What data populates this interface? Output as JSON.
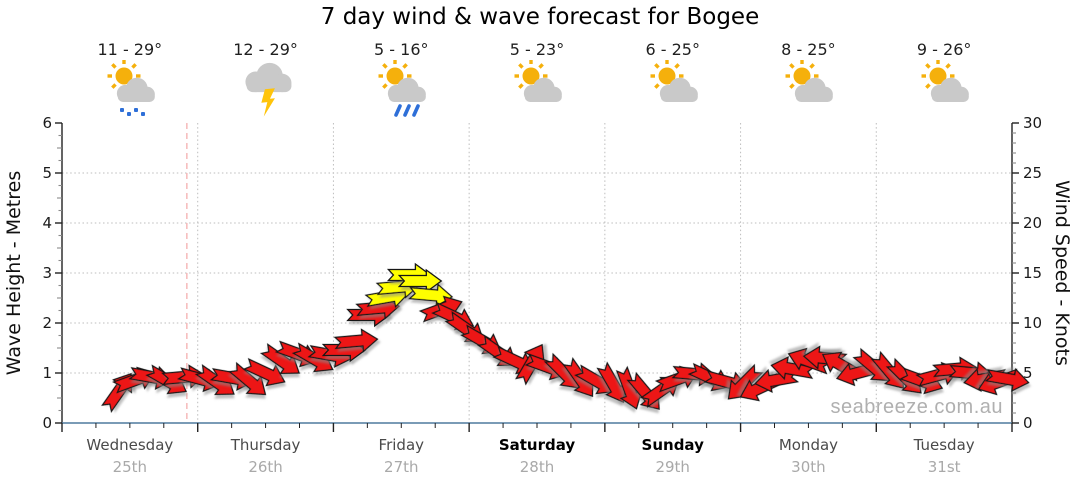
{
  "watermark": "seabreeze.com.au",
  "colors": {
    "arrow_red": "#ed1212",
    "arrow_yellow": "#ffff00",
    "arrow_outline": "#151515",
    "grid": "#bdbdbd",
    "now_line": "#f5b5b5",
    "axis": "#222222",
    "axis_bottom": "#4f7a9e",
    "minor_tick": "#8a8a8a",
    "tick_label": "#1a1a1a",
    "watermark_gray": "#b0b0b0",
    "sun": "#f5b00c",
    "cloud": "#c9c9c9",
    "bolt": "#ffc40a",
    "rain": "#2e6fd8"
  },
  "chart_data": {
    "type": "scatter",
    "style": "wind-direction-arrows",
    "title": "7 day wind & wave forecast for Bogee",
    "left_axis": {
      "label": "Wave Height - Metres",
      "min": 0,
      "max": 6,
      "ticks": [
        0,
        1,
        2,
        3,
        4,
        5,
        6
      ],
      "minor_step": 0.25,
      "gridlines": true
    },
    "right_axis": {
      "label": "Wind Speed - Knots",
      "min": 0,
      "max": 30,
      "ticks": [
        0,
        5,
        10,
        15,
        20,
        25,
        30
      ],
      "minor_step": 1
    },
    "x_axis": {
      "days": 7,
      "minor_ticks_per_day": 4,
      "day_boundary_gridlines": true
    },
    "days": [
      {
        "name": "Wednesday",
        "date": "25th",
        "temp": "11 - 29°",
        "icon": "partly-cloudy-drizzle",
        "weekend": false
      },
      {
        "name": "Thursday",
        "date": "26th",
        "temp": "12 - 29°",
        "icon": "thunderstorm",
        "weekend": false
      },
      {
        "name": "Friday",
        "date": "27th",
        "temp": "5 - 16°",
        "icon": "rain-showers",
        "weekend": false
      },
      {
        "name": "Saturday",
        "date": "28th",
        "temp": "5 - 23°",
        "icon": "partly-cloudy",
        "weekend": true
      },
      {
        "name": "Sunday",
        "date": "29th",
        "temp": "6 - 25°",
        "icon": "partly-cloudy",
        "weekend": true
      },
      {
        "name": "Monday",
        "date": "30th",
        "temp": "8 - 25°",
        "icon": "partly-cloudy",
        "weekend": false
      },
      {
        "name": "Tuesday",
        "date": "31st",
        "temp": "9 - 26°",
        "icon": "partly-cloudy",
        "weekend": false
      }
    ],
    "now_marker_day": 0.92,
    "arrow_columns": [
      "day_offset",
      "wind_knots",
      "direction_deg_cw_from_east",
      "color"
    ],
    "arrows": [
      [
        0.42,
        3.2,
        -55,
        "red"
      ],
      [
        0.54,
        4.3,
        -20,
        "red"
      ],
      [
        0.66,
        4.6,
        10,
        "red"
      ],
      [
        0.78,
        4.2,
        30,
        "red"
      ],
      [
        0.9,
        4.6,
        -5,
        "red"
      ],
      [
        1.02,
        4.4,
        15,
        "red"
      ],
      [
        1.14,
        4.1,
        35,
        "red"
      ],
      [
        1.26,
        4.5,
        10,
        "red"
      ],
      [
        1.38,
        4.2,
        40,
        "red"
      ],
      [
        1.5,
        5.0,
        25,
        "red"
      ],
      [
        1.62,
        6.2,
        35,
        "red"
      ],
      [
        1.74,
        6.9,
        20,
        "red"
      ],
      [
        1.86,
        6.4,
        30,
        "red"
      ],
      [
        1.98,
        6.8,
        10,
        "red"
      ],
      [
        2.08,
        7.3,
        0,
        "red"
      ],
      [
        2.17,
        8.2,
        -5,
        "red"
      ],
      [
        2.26,
        10.8,
        0,
        "red"
      ],
      [
        2.33,
        11.5,
        -5,
        "red"
      ],
      [
        2.4,
        12.6,
        -10,
        "yellow"
      ],
      [
        2.48,
        13.6,
        -5,
        "yellow"
      ],
      [
        2.56,
        14.8,
        0,
        "yellow"
      ],
      [
        2.64,
        14.2,
        0,
        "yellow"
      ],
      [
        2.72,
        12.8,
        5,
        "yellow"
      ],
      [
        2.8,
        11.4,
        -20,
        "red"
      ],
      [
        2.89,
        10.6,
        25,
        "red"
      ],
      [
        2.98,
        9.4,
        35,
        "red"
      ],
      [
        3.1,
        8.2,
        30,
        "red"
      ],
      [
        3.22,
        7.0,
        35,
        "red"
      ],
      [
        3.34,
        6.2,
        25,
        "red"
      ],
      [
        3.46,
        6.0,
        -60,
        "red"
      ],
      [
        3.58,
        5.6,
        20,
        "red"
      ],
      [
        3.7,
        5.0,
        45,
        "red"
      ],
      [
        3.82,
        4.4,
        55,
        "red"
      ],
      [
        3.94,
        4.2,
        30,
        "red"
      ],
      [
        4.06,
        3.9,
        60,
        "red"
      ],
      [
        4.18,
        3.4,
        70,
        "red"
      ],
      [
        4.3,
        3.0,
        50,
        "red"
      ],
      [
        4.42,
        3.3,
        -35,
        "red"
      ],
      [
        4.54,
        4.4,
        -20,
        "red"
      ],
      [
        4.66,
        4.9,
        5,
        "red"
      ],
      [
        4.78,
        4.5,
        25,
        "red"
      ],
      [
        4.9,
        4.1,
        15,
        "red"
      ],
      [
        5.02,
        3.9,
        135,
        "red"
      ],
      [
        5.14,
        3.5,
        155,
        "red"
      ],
      [
        5.26,
        4.3,
        170,
        "red"
      ],
      [
        5.38,
        5.4,
        -170,
        "red"
      ],
      [
        5.5,
        6.2,
        -160,
        "red"
      ],
      [
        5.62,
        6.5,
        -175,
        "red"
      ],
      [
        5.74,
        5.8,
        -150,
        "red"
      ],
      [
        5.86,
        5.0,
        165,
        "red"
      ],
      [
        5.98,
        5.6,
        40,
        "red"
      ],
      [
        6.1,
        5.1,
        50,
        "red"
      ],
      [
        6.22,
        4.5,
        45,
        "red"
      ],
      [
        6.34,
        4.2,
        20,
        "red"
      ],
      [
        6.46,
        4.8,
        -15,
        "red"
      ],
      [
        6.58,
        5.4,
        -5,
        "red"
      ],
      [
        6.7,
        5.0,
        5,
        "red"
      ],
      [
        6.8,
        4.4,
        170,
        "red"
      ],
      [
        6.9,
        4.1,
        160,
        "red"
      ],
      [
        6.97,
        4.4,
        10,
        "red"
      ]
    ]
  }
}
